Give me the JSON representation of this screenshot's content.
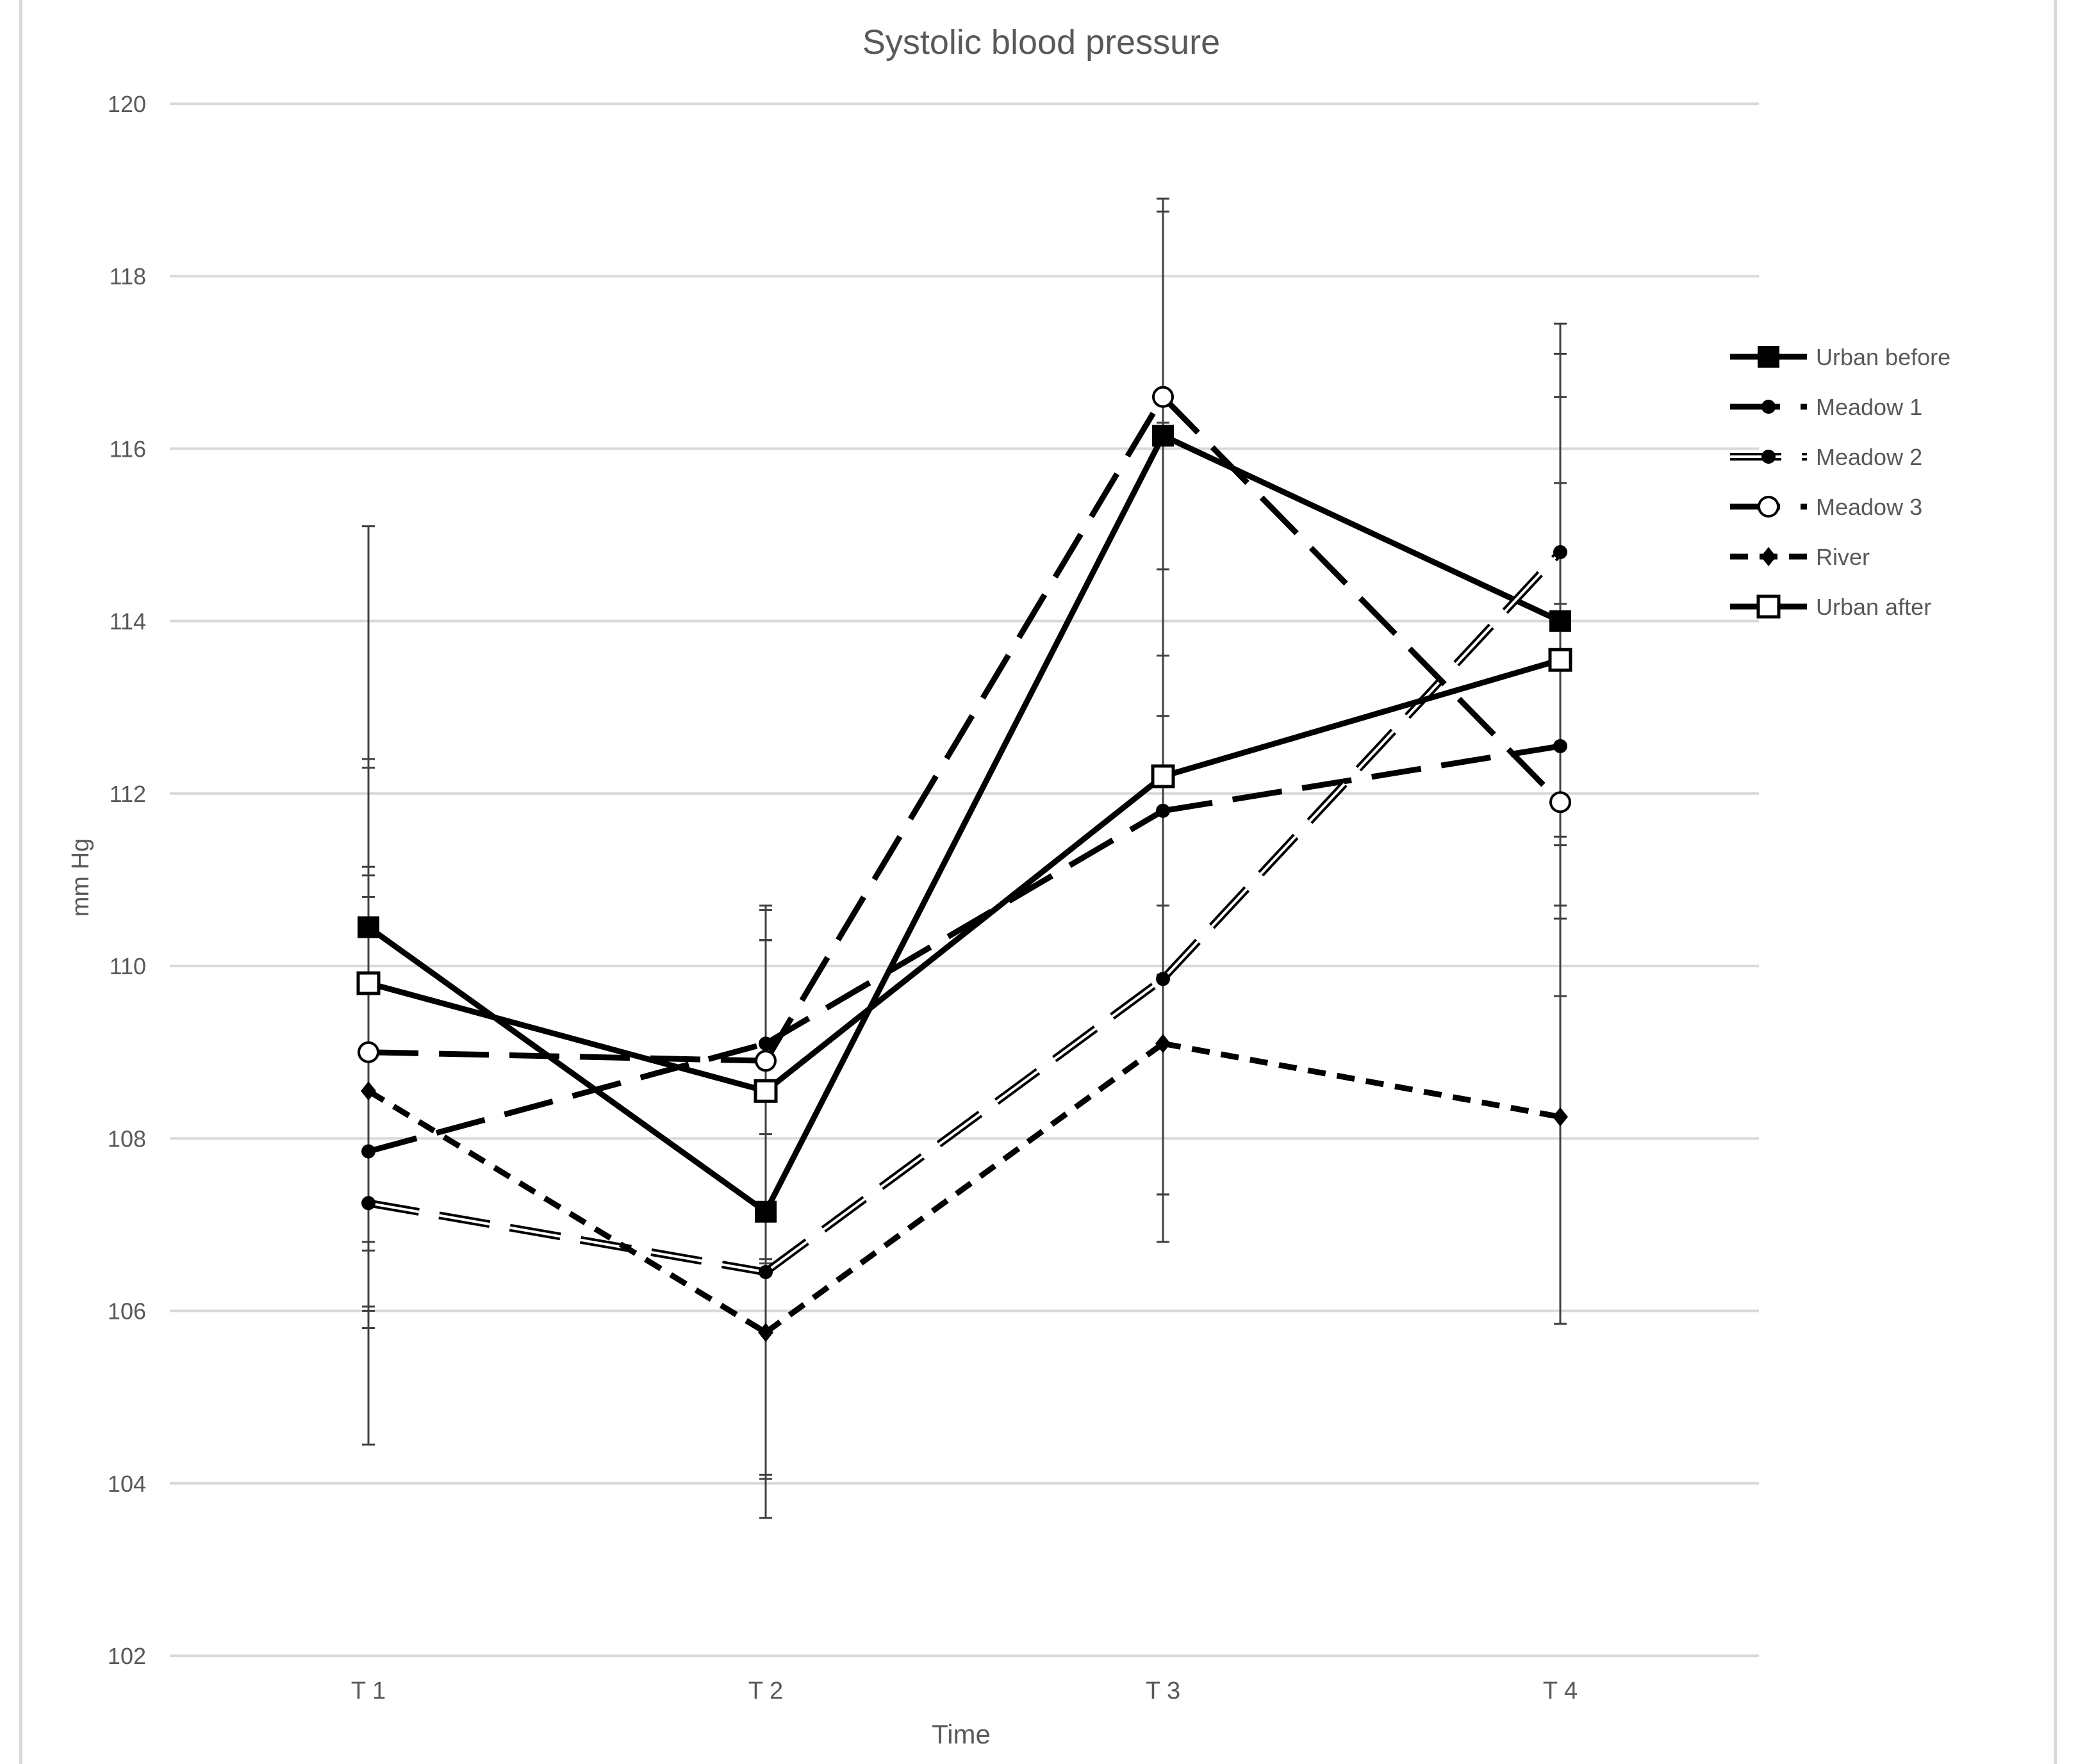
{
  "chart_data": {
    "type": "line",
    "title": "Systolic blood pressure",
    "xlabel": "Time",
    "ylabel": "mm Hg",
    "categories": [
      "T 1",
      "T 2",
      "T 3",
      "T 4"
    ],
    "ylim": [
      102,
      120
    ],
    "yticks": [
      102,
      104,
      106,
      108,
      110,
      112,
      114,
      116,
      118,
      120
    ],
    "grid": true,
    "legend_position": "right",
    "series": [
      {
        "name": "Urban before",
        "values": [
          110.45,
          107.15,
          116.15,
          114.0
        ],
        "err_low": [
          104.45,
          103.6,
          106.8,
          105.85
        ],
        "err_high": [
          115.1,
          110.7,
          118.75,
          117.1
        ],
        "marker": "square-filled",
        "dash": "solid",
        "color": "#000000"
      },
      {
        "name": "Meadow 1",
        "values": [
          107.85,
          109.1,
          111.8,
          112.55
        ],
        "err_low": [
          105.8,
          106.6,
          107.35,
          109.65
        ],
        "err_high": [
          110.8,
          110.3,
          116.3,
          115.6
        ],
        "marker": "circle-filled",
        "dash": "long-dash",
        "color": "#000000"
      },
      {
        "name": "Meadow 2",
        "values": [
          107.25,
          106.45,
          109.85,
          114.8
        ],
        "err_low": [
          106.05,
          105.75,
          107.35,
          110.55
        ],
        "err_high": [
          111.05,
          110.3,
          113.6,
          117.45
        ],
        "marker": "circle-filled",
        "dash": "double-dash",
        "color": "#000000"
      },
      {
        "name": "Meadow 3",
        "values": [
          109.0,
          108.9,
          116.6,
          111.9
        ],
        "err_low": [
          106.8,
          104.1,
          110.7,
          110.7
        ],
        "err_high": [
          112.4,
          110.65,
          118.9,
          114.2
        ],
        "marker": "circle-open",
        "dash": "long-dash",
        "color": "#000000"
      },
      {
        "name": "River",
        "values": [
          108.55,
          105.75,
          109.1,
          108.25
        ],
        "err_low": [
          106.7,
          104.05,
          106.8,
          105.85
        ],
        "err_high": [
          111.15,
          108.05,
          112.9,
          111.4
        ],
        "marker": "diamond-filled",
        "dash": "short-dash",
        "color": "#000000"
      },
      {
        "name": "Urban after",
        "values": [
          109.8,
          108.55,
          112.2,
          113.55
        ],
        "err_low": [
          106.0,
          106.55,
          109.9,
          111.5
        ],
        "err_high": [
          112.3,
          110.3,
          114.6,
          116.6
        ],
        "marker": "square-open",
        "dash": "solid",
        "color": "#000000"
      }
    ]
  }
}
